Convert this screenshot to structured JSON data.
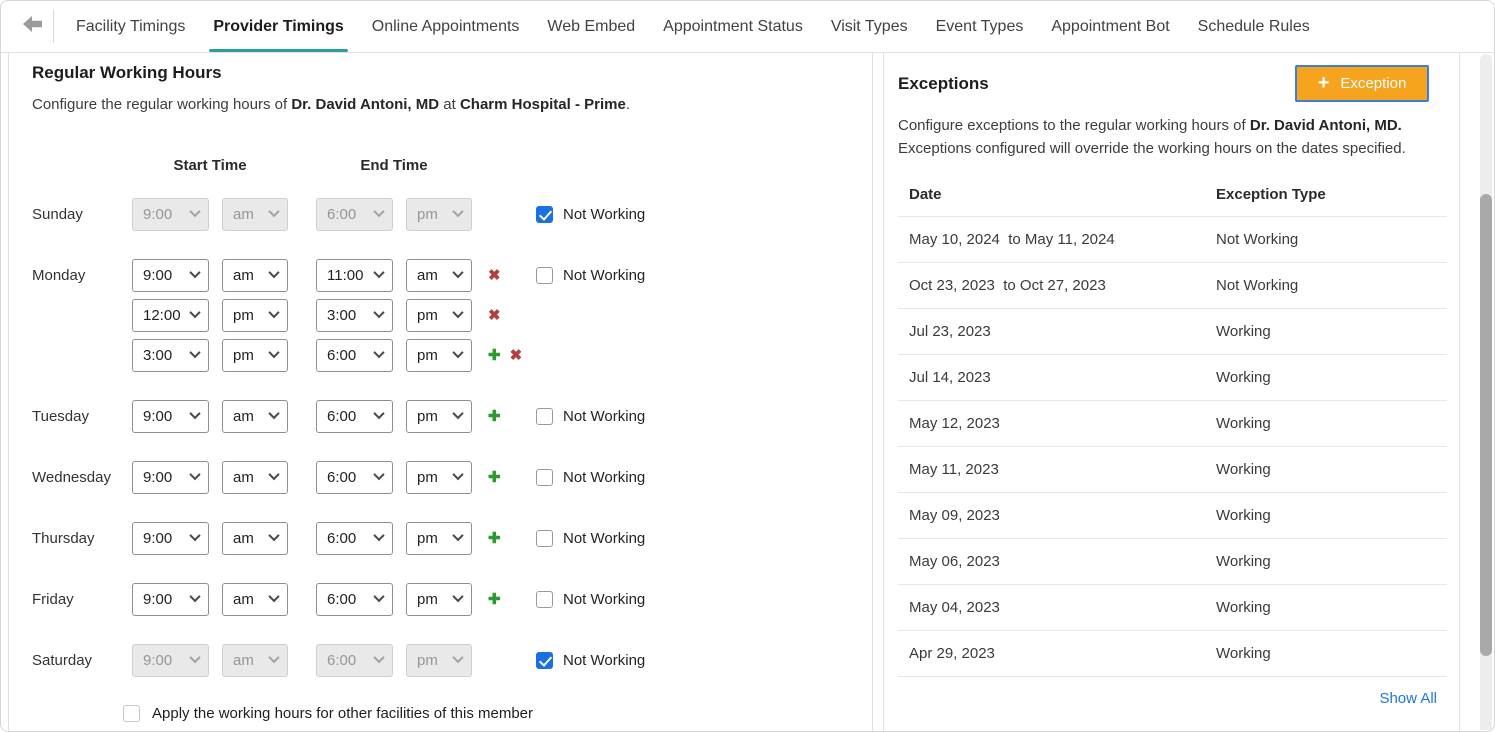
{
  "nav": {
    "back_icon": "back-arrow",
    "tabs": [
      {
        "label": "Facility Timings",
        "active": false
      },
      {
        "label": "Provider Timings",
        "active": true
      },
      {
        "label": "Online Appointments",
        "active": false
      },
      {
        "label": "Web Embed",
        "active": false
      },
      {
        "label": "Appointment Status",
        "active": false
      },
      {
        "label": "Visit Types",
        "active": false
      },
      {
        "label": "Event Types",
        "active": false
      },
      {
        "label": "Appointment Bot",
        "active": false
      },
      {
        "label": "Schedule Rules",
        "active": false
      }
    ]
  },
  "icons": {
    "add": "✚",
    "remove": "✖"
  },
  "colors": {
    "active_tab_underline": "#28a0a0",
    "exception_button_bg": "#f6a41d",
    "exception_button_focus_border": "#3c7edd",
    "checkbox_checked": "#1a6fe3",
    "add_icon": "#2c9a2c",
    "remove_icon": "#b2403c",
    "link_blue": "#1d78d2"
  },
  "working_hours": {
    "title": "Regular Working Hours",
    "desc_prefix": "Configure the regular working hours of ",
    "provider": "Dr. David Antoni, MD",
    "desc_mid": " at ",
    "facility": "Charm Hospital - Prime",
    "desc_suffix": ".",
    "columns": {
      "start": "Start Time",
      "end": "End Time"
    },
    "not_working_label": "Not Working",
    "apply_label": "Apply the working hours for other facilities of this member",
    "days": [
      {
        "label": "Sunday",
        "disabled": true,
        "not_working": true,
        "slots": [
          {
            "start_hour": "9:00",
            "start_meridiem": "am",
            "end_hour": "6:00",
            "end_meridiem": "pm",
            "actions": []
          }
        ]
      },
      {
        "label": "Monday",
        "disabled": false,
        "not_working": false,
        "slots": [
          {
            "start_hour": "9:00",
            "start_meridiem": "am",
            "end_hour": "11:00",
            "end_meridiem": "am",
            "actions": [
              "remove"
            ]
          },
          {
            "start_hour": "12:00",
            "start_meridiem": "pm",
            "end_hour": "3:00",
            "end_meridiem": "pm",
            "actions": [
              "remove"
            ]
          },
          {
            "start_hour": "3:00",
            "start_meridiem": "pm",
            "end_hour": "6:00",
            "end_meridiem": "pm",
            "actions": [
              "add",
              "remove"
            ]
          }
        ]
      },
      {
        "label": "Tuesday",
        "disabled": false,
        "not_working": false,
        "slots": [
          {
            "start_hour": "9:00",
            "start_meridiem": "am",
            "end_hour": "6:00",
            "end_meridiem": "pm",
            "actions": [
              "add"
            ]
          }
        ]
      },
      {
        "label": "Wednesday",
        "disabled": false,
        "not_working": false,
        "slots": [
          {
            "start_hour": "9:00",
            "start_meridiem": "am",
            "end_hour": "6:00",
            "end_meridiem": "pm",
            "actions": [
              "add"
            ]
          }
        ]
      },
      {
        "label": "Thursday",
        "disabled": false,
        "not_working": false,
        "slots": [
          {
            "start_hour": "9:00",
            "start_meridiem": "am",
            "end_hour": "6:00",
            "end_meridiem": "pm",
            "actions": [
              "add"
            ]
          }
        ]
      },
      {
        "label": "Friday",
        "disabled": false,
        "not_working": false,
        "slots": [
          {
            "start_hour": "9:00",
            "start_meridiem": "am",
            "end_hour": "6:00",
            "end_meridiem": "pm",
            "actions": [
              "add"
            ]
          }
        ]
      },
      {
        "label": "Saturday",
        "disabled": true,
        "not_working": true,
        "slots": [
          {
            "start_hour": "9:00",
            "start_meridiem": "am",
            "end_hour": "6:00",
            "end_meridiem": "pm",
            "actions": []
          }
        ]
      }
    ]
  },
  "exceptions": {
    "title": "Exceptions",
    "button": {
      "plus": "+",
      "label": "Exception"
    },
    "desc_prefix": "Configure exceptions to the regular working hours of ",
    "provider": "Dr. David Antoni, MD.",
    "desc_suffix": " Exceptions configured will override the working hours on the dates specified.",
    "table": {
      "columns": [
        "Date",
        "Exception Type"
      ],
      "rows": [
        {
          "date": "May 10, 2024  to May 11, 2024",
          "type": "Not Working"
        },
        {
          "date": "Oct 23, 2023  to Oct 27, 2023",
          "type": "Not Working"
        },
        {
          "date": "Jul 23, 2023",
          "type": "Working"
        },
        {
          "date": "Jul 14, 2023",
          "type": "Working"
        },
        {
          "date": "May 12, 2023",
          "type": "Working"
        },
        {
          "date": "May 11, 2023",
          "type": "Working"
        },
        {
          "date": "May 09, 2023",
          "type": "Working"
        },
        {
          "date": "May 06, 2023",
          "type": "Working"
        },
        {
          "date": "May 04, 2023",
          "type": "Working"
        },
        {
          "date": "Apr 29, 2023",
          "type": "Working"
        }
      ]
    },
    "show_all_label": "Show All"
  }
}
